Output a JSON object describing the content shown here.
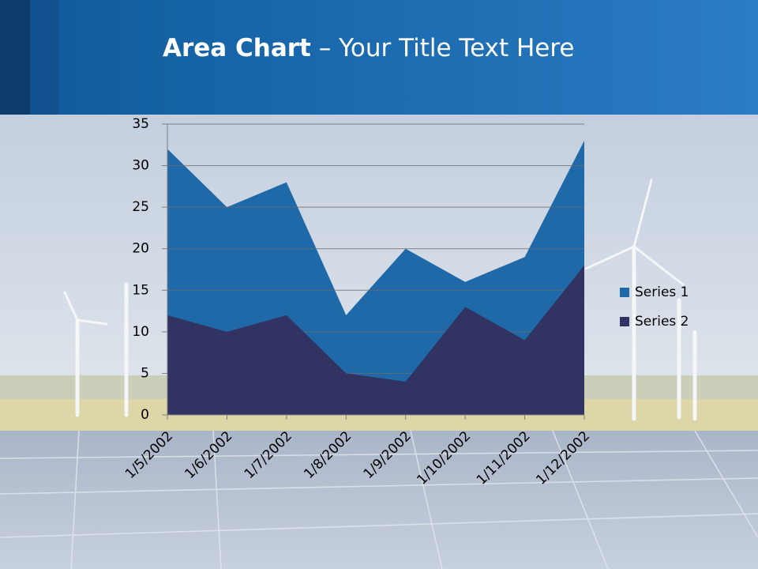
{
  "chart_data": {
    "type": "area",
    "title_bold": "Area Chart",
    "title_rest": "– Your Title Text Here",
    "categories": [
      "1/5/2002",
      "1/6/2002",
      "1/7/2002",
      "1/8/2002",
      "1/9/2002",
      "1/10/2002",
      "1/11/2002",
      "1/12/2002"
    ],
    "series": [
      {
        "name": "Series 1",
        "color": "#1f69a8",
        "values": [
          32,
          25,
          28,
          12,
          20,
          16,
          19,
          33
        ]
      },
      {
        "name": "Series 2",
        "color": "#313363",
        "values": [
          12,
          10,
          12,
          5,
          4,
          13,
          9,
          18
        ]
      }
    ],
    "ylim": [
      0,
      35
    ],
    "yticks": [
      0,
      5,
      10,
      15,
      20,
      25,
      30,
      35
    ],
    "grid": true,
    "legend": "right"
  }
}
